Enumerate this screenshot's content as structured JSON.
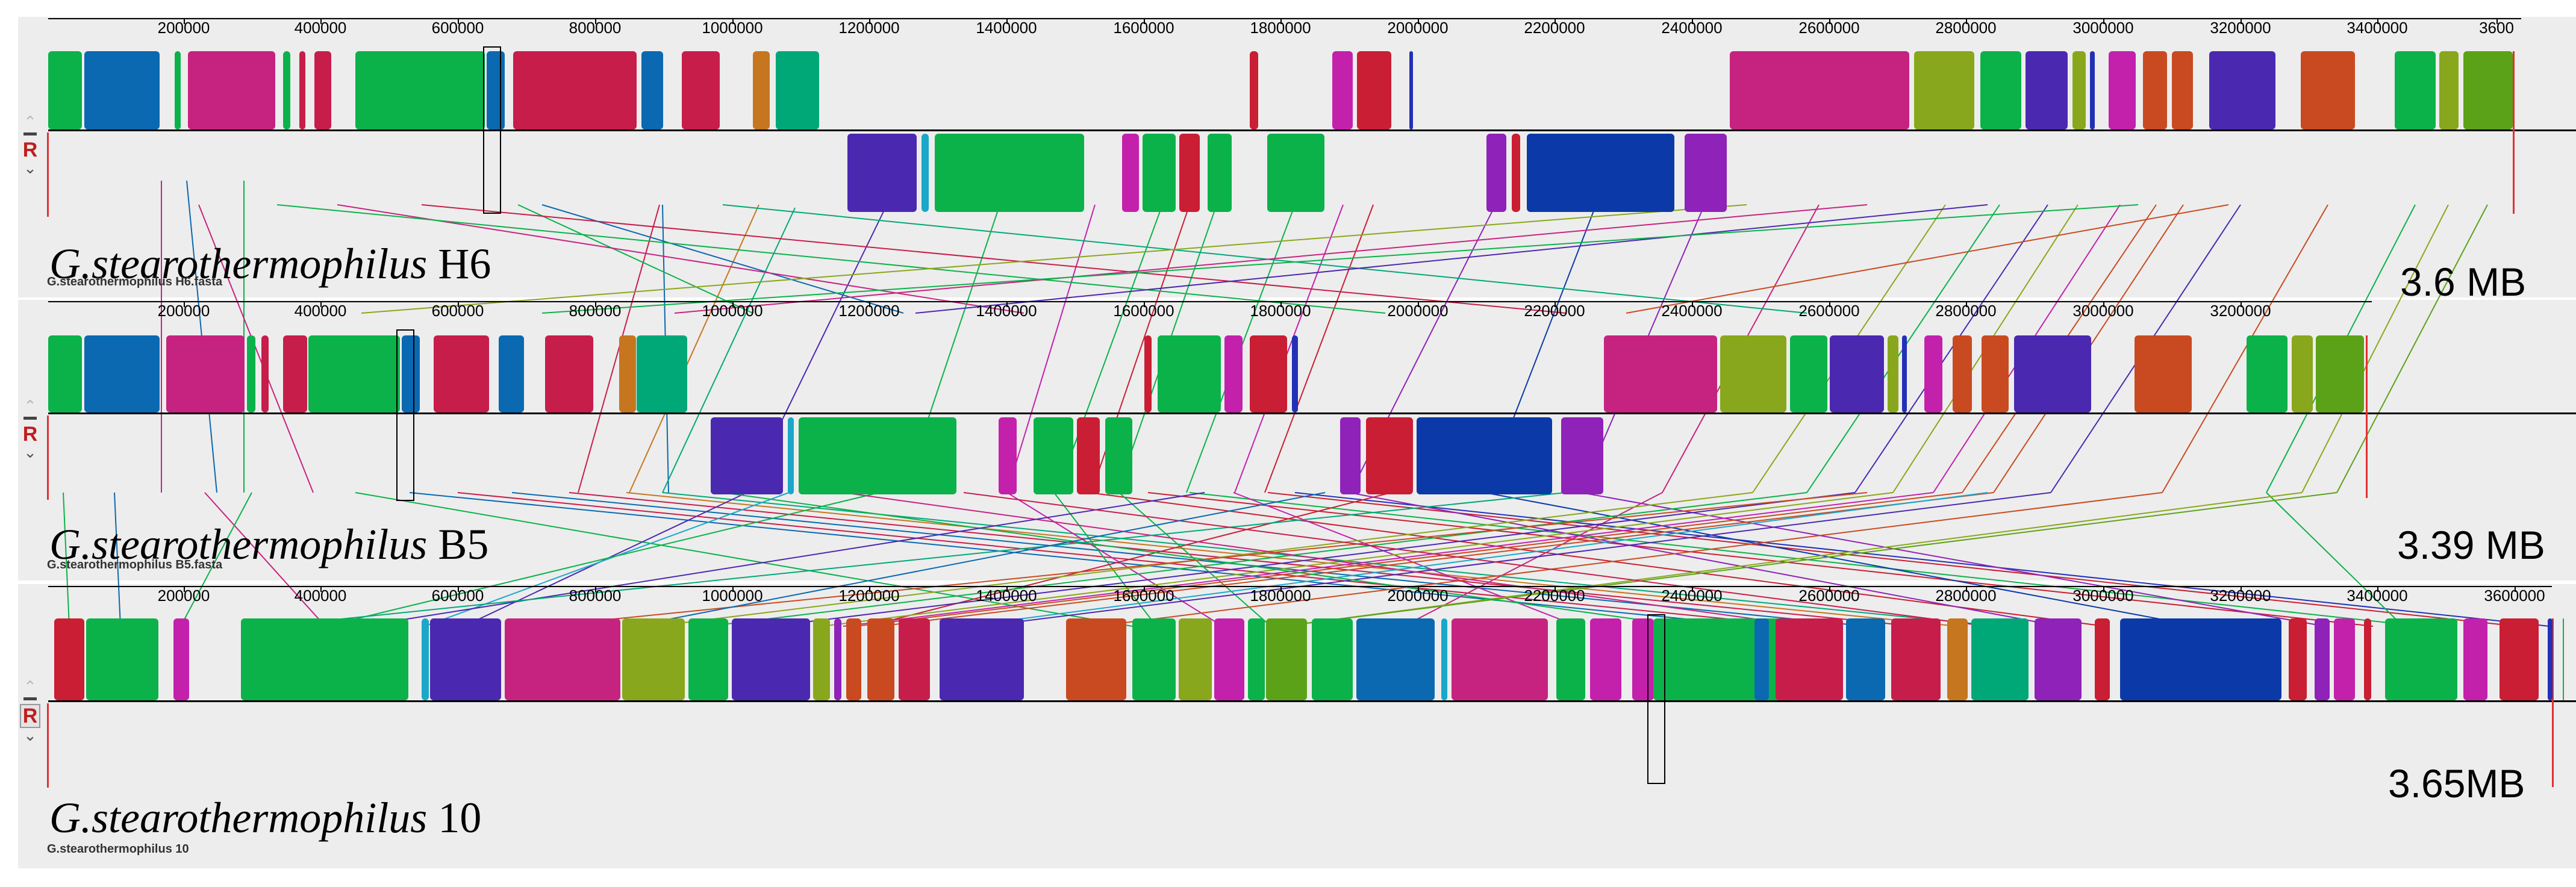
{
  "colors": {
    "green": "#0bb24a",
    "blue": "#0a69b0",
    "magenta": "#c62380",
    "crimson": "#c71d4a",
    "teal": "#00a878",
    "orange": "#c5761f",
    "olive": "#89a71c",
    "purple": "#4b28b0",
    "rust": "#c94a21",
    "pink": "#c321ac",
    "red": "#c91e33",
    "violet": "#8f22b8",
    "navy": "#0b3aa8",
    "lime": "#5ba218",
    "indigo": "#2230b8",
    "cyan": "#1aa7c9"
  },
  "tracks": [
    {
      "title_species": "G.stearothermophilus",
      "title_strain": "H6",
      "file_label": "G.stearothermophilus H6.fasta",
      "size_label": "3.6 MB",
      "control": {
        "up": "⌃",
        "reverse": "R",
        "down": "⌄"
      },
      "ticks": [
        "200000",
        "400000",
        "600000",
        "800000",
        "1000000",
        "1200000",
        "1400000",
        "1600000",
        "1800000",
        "2000000",
        "2200000",
        "2400000",
        "2600000",
        "2800000",
        "3000000",
        "3200000",
        "3400000",
        "3600"
      ]
    },
    {
      "title_species": "G.stearothermophilus",
      "title_strain": "B5",
      "file_label": "G.stearothermophilus B5.fasta",
      "size_label": "3.39 MB",
      "control": {
        "up": "⌃",
        "reverse": "R",
        "down": "⌄"
      },
      "ticks": [
        "200000",
        "400000",
        "600000",
        "800000",
        "1000000",
        "1200000",
        "1400000",
        "1600000",
        "1800000",
        "2000000",
        "2200000",
        "2400000",
        "2600000",
        "2800000",
        "3000000",
        "3200000"
      ]
    },
    {
      "title_species": "G.stearothermophilus",
      "title_strain": "10",
      "file_label": "G.stearothermophilus 10",
      "size_label": "3.65MB",
      "control": {
        "up": "⌃",
        "reverse": "R",
        "down": "⌄"
      },
      "ticks": [
        "200000",
        "400000",
        "600000",
        "800000",
        "1000000",
        "1200000",
        "1400000",
        "1600000",
        "1800000",
        "2000000",
        "2200000",
        "2400000",
        "2600000",
        "2800000",
        "3000000",
        "3200000",
        "3400000",
        "3600000"
      ]
    }
  ]
}
